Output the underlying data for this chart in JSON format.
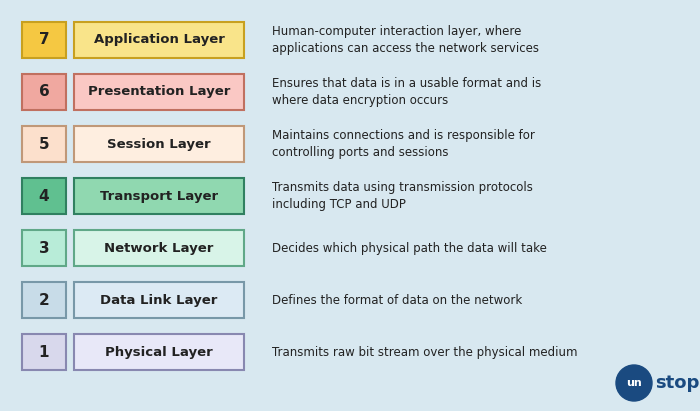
{
  "background_color": "#d8e8f0",
  "layers": [
    {
      "number": 7,
      "name": "Application Layer",
      "description": "Human-computer interaction layer, where\napplications can access the network services",
      "num_bg": "#f5c842",
      "num_border": "#c8a020",
      "box_bg": "#f9e48a",
      "box_border": "#c8a020"
    },
    {
      "number": 6,
      "name": "Presentation Layer",
      "description": "Ensures that data is in a usable format and is\nwhere data encryption occurs",
      "num_bg": "#f0a8a0",
      "num_border": "#c07060",
      "box_bg": "#fac8c4",
      "box_border": "#c07060"
    },
    {
      "number": 5,
      "name": "Session Layer",
      "description": "Maintains connections and is responsible for\ncontrolling ports and sessions",
      "num_bg": "#fce0cc",
      "num_border": "#c09878",
      "box_bg": "#feeee0",
      "box_border": "#c09878"
    },
    {
      "number": 4,
      "name": "Transport Layer",
      "description": "Transmits data using transmission protocols\nincluding TCP and UDP",
      "num_bg": "#60c090",
      "num_border": "#308060",
      "box_bg": "#90d8b0",
      "box_border": "#308060"
    },
    {
      "number": 3,
      "name": "Network Layer",
      "description": "Decides which physical path the data will take",
      "num_bg": "#b8ecd8",
      "num_border": "#60a888",
      "box_bg": "#d8f4e8",
      "box_border": "#60a888"
    },
    {
      "number": 2,
      "name": "Data Link Layer",
      "description": "Defines the format of data on the network",
      "num_bg": "#c8dce8",
      "num_border": "#7898a8",
      "box_bg": "#dceaf4",
      "box_border": "#7898a8"
    },
    {
      "number": 1,
      "name": "Physical Layer",
      "description": "Transmits raw bit stream over the physical medium",
      "num_bg": "#d8d8ec",
      "num_border": "#8888b0",
      "box_bg": "#e8e8f8",
      "box_border": "#8888b0"
    }
  ],
  "logo_circle_color": "#1a4a80",
  "logo_text_white": "un",
  "logo_text_dark": "stop",
  "logo_text_color": "#1a4a80",
  "fig_width": 7.0,
  "fig_height": 4.11,
  "dpi": 100
}
